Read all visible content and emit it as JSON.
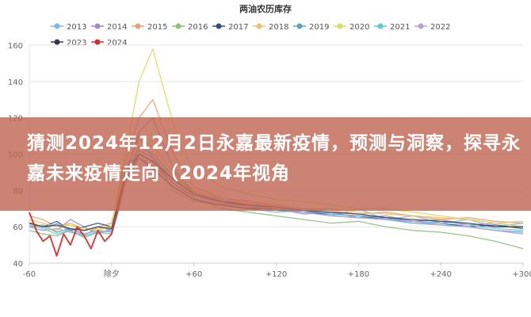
{
  "chart_data": {
    "type": "line",
    "title": "两油农历库存",
    "legend_position": "top",
    "grid": true,
    "ylim": [
      40,
      160
    ],
    "y_ticks": [
      40,
      60,
      80,
      100,
      120,
      140,
      160
    ],
    "xlim": [
      -60,
      300
    ],
    "x_ticks": [
      "-60",
      "除夕",
      "+60",
      "+120",
      "+180",
      "+240",
      "+300"
    ],
    "x_tick_values": [
      -60,
      0,
      60,
      120,
      180,
      240,
      300
    ],
    "series": [
      {
        "name": "2013",
        "color": "#7fb8e8",
        "x": [
          -60,
          -50,
          -40,
          -30,
          -20,
          -10,
          0,
          10,
          20,
          30,
          45,
          60,
          80,
          100,
          120,
          140,
          160,
          180,
          200,
          220,
          240,
          260,
          280,
          300
        ],
        "y": [
          60,
          58,
          62,
          57,
          55,
          60,
          58,
          90,
          110,
          98,
          80,
          74,
          72,
          70,
          68,
          69,
          66,
          70,
          64,
          66,
          62,
          64,
          60,
          62
        ]
      },
      {
        "name": "2014",
        "color": "#a28ad0",
        "x": [
          -60,
          -50,
          -40,
          -30,
          -20,
          -10,
          0,
          10,
          20,
          30,
          45,
          60,
          80,
          100,
          120,
          140,
          160,
          180,
          200,
          220,
          240,
          260,
          280,
          300
        ],
        "y": [
          62,
          60,
          58,
          64,
          60,
          56,
          59,
          88,
          112,
          120,
          92,
          78,
          73,
          72,
          70,
          67,
          68,
          65,
          66,
          63,
          64,
          61,
          62,
          60
        ]
      },
      {
        "name": "2015",
        "color": "#e8a070",
        "x": [
          -60,
          -50,
          -40,
          -30,
          -20,
          -10,
          0,
          10,
          20,
          30,
          45,
          60,
          80,
          100,
          120,
          140,
          160,
          180,
          200,
          220,
          240,
          260,
          280,
          300
        ],
        "y": [
          66,
          64,
          60,
          62,
          58,
          60,
          62,
          95,
          120,
          130,
          100,
          82,
          76,
          74,
          72,
          70,
          69,
          67,
          68,
          66,
          64,
          65,
          63,
          62
        ]
      },
      {
        "name": "2016",
        "color": "#8cc07a",
        "x": [
          -60,
          -50,
          -40,
          -30,
          -20,
          -10,
          0,
          10,
          20,
          30,
          45,
          60,
          80,
          100,
          120,
          140,
          160,
          180,
          200,
          220,
          240,
          260,
          280,
          300
        ],
        "y": [
          58,
          56,
          55,
          58,
          54,
          57,
          56,
          84,
          100,
          96,
          84,
          76,
          70,
          68,
          66,
          64,
          62,
          63,
          60,
          58,
          57,
          55,
          52,
          48
        ]
      },
      {
        "name": "2017",
        "color": "#2e4e8a",
        "x": [
          -60,
          -50,
          -40,
          -30,
          -20,
          -10,
          0,
          10,
          20,
          30,
          45,
          60,
          80,
          100,
          120,
          140,
          160,
          180,
          200,
          220,
          240,
          260,
          280,
          300
        ],
        "y": [
          62,
          60,
          63,
          58,
          60,
          62,
          60,
          86,
          98,
          92,
          82,
          75,
          72,
          70,
          70,
          68,
          67,
          66,
          64,
          63,
          62,
          60,
          61,
          59
        ]
      },
      {
        "name": "2018",
        "color": "#f0c070",
        "x": [
          -60,
          -50,
          -40,
          -30,
          -20,
          -10,
          0,
          10,
          20,
          30,
          45,
          60,
          80,
          100,
          120,
          140,
          160,
          180,
          200,
          220,
          240,
          260,
          280,
          300
        ],
        "y": [
          64,
          62,
          60,
          61,
          58,
          59,
          60,
          92,
          108,
          104,
          90,
          80,
          76,
          73,
          72,
          70,
          70,
          68,
          67,
          66,
          65,
          64,
          62,
          63
        ]
      },
      {
        "name": "2019",
        "color": "#5fa0c8",
        "x": [
          -60,
          -50,
          -40,
          -30,
          -20,
          -10,
          0,
          10,
          20,
          30,
          45,
          60,
          80,
          100,
          120,
          140,
          160,
          180,
          200,
          220,
          240,
          260,
          280,
          300
        ],
        "y": [
          60,
          61,
          57,
          59,
          56,
          58,
          57,
          88,
          102,
          98,
          86,
          78,
          74,
          71,
          69,
          68,
          66,
          65,
          64,
          62,
          61,
          60,
          58,
          57
        ]
      },
      {
        "name": "2020",
        "color": "#d8dc60",
        "x": [
          -60,
          -50,
          -40,
          -30,
          -20,
          -10,
          0,
          10,
          20,
          30,
          40,
          50,
          60,
          80,
          100,
          120,
          140,
          160,
          180,
          200,
          220,
          240,
          260,
          280,
          300
        ],
        "y": [
          63,
          60,
          58,
          62,
          59,
          58,
          60,
          100,
          140,
          158,
          130,
          104,
          92,
          82,
          78,
          75,
          74,
          72,
          70,
          70,
          68,
          66,
          64,
          62,
          60
        ]
      },
      {
        "name": "2021",
        "color": "#60c8d8",
        "x": [
          -60,
          -50,
          -40,
          -30,
          -20,
          -10,
          0,
          10,
          20,
          30,
          45,
          60,
          80,
          100,
          120,
          140,
          160,
          180,
          200,
          220,
          240,
          260,
          280,
          300
        ],
        "y": [
          61,
          59,
          56,
          58,
          55,
          57,
          58,
          90,
          104,
          100,
          88,
          79,
          75,
          72,
          70,
          69,
          67,
          66,
          65,
          63,
          62,
          61,
          59,
          58
        ]
      },
      {
        "name": "2022",
        "color": "#b8a0d8",
        "x": [
          -60,
          -50,
          -40,
          -30,
          -20,
          -10,
          0,
          10,
          20,
          30,
          45,
          60,
          80,
          100,
          120,
          140,
          160,
          180,
          200,
          220,
          240,
          260,
          280,
          300
        ],
        "y": [
          60,
          58,
          59,
          57,
          56,
          58,
          57,
          86,
          98,
          94,
          84,
          77,
          73,
          71,
          70,
          68,
          66,
          65,
          64,
          63,
          61,
          60,
          58,
          56
        ]
      },
      {
        "name": "2023",
        "color": "#333a4a",
        "x": [
          -60,
          -50,
          -40,
          -30,
          -20,
          -10,
          0,
          10,
          20,
          30,
          45,
          60,
          80,
          100,
          120,
          140,
          160,
          180,
          200,
          220,
          240,
          260,
          280,
          300
        ],
        "y": [
          62,
          60,
          61,
          59,
          58,
          60,
          59,
          88,
          100,
          96,
          86,
          78,
          74,
          72,
          71,
          69,
          68,
          67,
          65,
          64,
          63,
          62,
          60,
          60
        ]
      },
      {
        "name": "2024",
        "color": "#c83232",
        "x": [
          -60,
          -55,
          -50,
          -45,
          -40,
          -35,
          -30,
          -25,
          -20,
          -15,
          -10,
          -5,
          0,
          5,
          10
        ],
        "y": [
          68,
          58,
          52,
          55,
          44,
          56,
          50,
          60,
          55,
          48,
          58,
          52,
          56,
          70,
          88
        ]
      }
    ]
  },
  "headline": "猜测2024年12月2日永嘉最新疫情，预测与洞察，探寻永嘉未来疫情走向（2024年视角"
}
